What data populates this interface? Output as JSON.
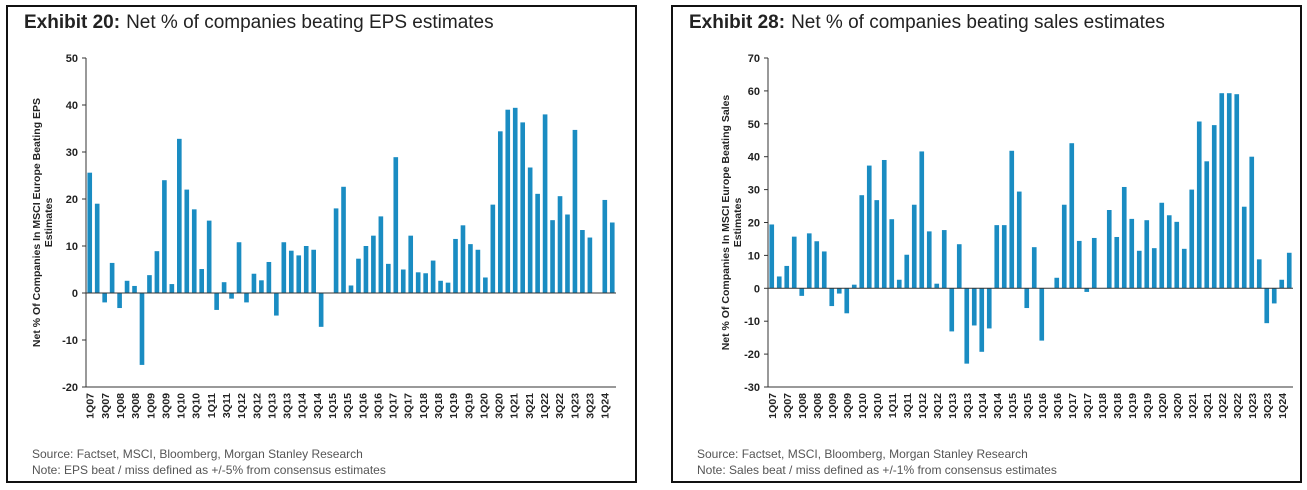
{
  "panels": [
    {
      "exhibit": "Exhibit 20:",
      "title": "Net % of companies beating EPS estimates",
      "source": "Source: Factset, MSCI, Bloomberg, Morgan Stanley Research",
      "note": "Note: EPS beat / miss defined as +/-5% from consensus estimates"
    },
    {
      "exhibit": "Exhibit 28:",
      "title": "Net % of companies beating sales estimates",
      "source": "Source: Factset, MSCI, Bloomberg, Morgan Stanley Research",
      "note": "Note: Sales beat / miss defined as +/-1% from consensus estimates"
    }
  ],
  "chart_data": [
    {
      "type": "bar",
      "title": "Net % of companies beating EPS estimates",
      "ylabel": "Net % Of Companies In MSCI Europe Beating EPS Estimates",
      "ylim": [
        -20,
        50
      ],
      "yticks": [
        -20,
        -10,
        0,
        10,
        20,
        30,
        40,
        50
      ],
      "bar_color": "#1a8cc2",
      "grid": false,
      "x_tick_labels": [
        "1Q07",
        "3Q07",
        "1Q08",
        "3Q08",
        "1Q09",
        "3Q09",
        "1Q10",
        "3Q10",
        "1Q11",
        "3Q11",
        "1Q12",
        "3Q12",
        "1Q13",
        "3Q13",
        "1Q14",
        "3Q14",
        "1Q15",
        "3Q15",
        "1Q16",
        "3Q16",
        "1Q17",
        "3Q17",
        "1Q18",
        "3Q18",
        "1Q19",
        "3Q19",
        "1Q20",
        "3Q20",
        "1Q21",
        "3Q21",
        "1Q22",
        "3Q22",
        "1Q23",
        "3Q23",
        "1Q24"
      ],
      "values": [
        25.6,
        19.0,
        -2.0,
        6.4,
        -3.2,
        2.6,
        1.5,
        -15.3,
        3.8,
        8.9,
        24.0,
        1.9,
        32.8,
        22.0,
        17.8,
        5.1,
        15.4,
        -3.6,
        2.3,
        -1.2,
        10.8,
        -2.0,
        4.1,
        2.7,
        6.6,
        -4.8,
        10.8,
        9.0,
        8.0,
        10.0,
        9.2,
        -7.2,
        0.0,
        18.0,
        22.6,
        1.6,
        7.3,
        10.0,
        12.2,
        16.3,
        6.2,
        28.9,
        5.0,
        12.2,
        4.4,
        4.2,
        6.9,
        2.6,
        2.2,
        11.5,
        14.4,
        10.4,
        9.2,
        3.3,
        18.8,
        34.4,
        39.0,
        39.4,
        36.3,
        26.7,
        21.1,
        38.0,
        15.5,
        20.6,
        16.7,
        34.7,
        13.4,
        11.8,
        0.0,
        19.8,
        15.0
      ]
    },
    {
      "type": "bar",
      "title": "Net % of companies beating sales estimates",
      "ylabel": "Net % Of Companies In MSCI Europe Beating Sales Estimates",
      "ylim": [
        -30,
        70
      ],
      "yticks": [
        -30,
        -20,
        -10,
        0,
        10,
        20,
        30,
        40,
        50,
        60,
        70
      ],
      "bar_color": "#1a8cc2",
      "grid": false,
      "x_tick_labels": [
        "1Q07",
        "3Q07",
        "1Q08",
        "3Q08",
        "1Q09",
        "3Q09",
        "1Q10",
        "3Q10",
        "1Q11",
        "3Q11",
        "1Q12",
        "3Q12",
        "1Q13",
        "3Q13",
        "1Q14",
        "3Q14",
        "1Q15",
        "3Q15",
        "1Q16",
        "3Q16",
        "1Q17",
        "3Q17",
        "1Q18",
        "3Q18",
        "1Q19",
        "3Q19",
        "1Q20",
        "3Q20",
        "1Q21",
        "3Q21",
        "1Q22",
        "3Q22",
        "1Q23",
        "3Q23",
        "1Q24"
      ],
      "values": [
        19.4,
        3.6,
        6.8,
        15.7,
        -2.3,
        16.7,
        14.3,
        11.2,
        -5.4,
        -1.6,
        -7.6,
        1.1,
        28.3,
        37.3,
        26.8,
        39.0,
        21.0,
        2.6,
        10.2,
        25.4,
        41.6,
        17.3,
        1.4,
        17.7,
        -13.1,
        13.4,
        -22.9,
        -11.3,
        -19.3,
        -12.2,
        19.2,
        19.2,
        41.8,
        29.4,
        -6.0,
        12.5,
        -15.9,
        0.0,
        3.2,
        25.4,
        44.1,
        14.4,
        -1.1,
        15.3,
        0.0,
        23.8,
        15.6,
        30.8,
        21.1,
        11.4,
        20.7,
        12.2,
        26.0,
        22.2,
        20.2,
        12.0,
        30.0,
        50.7,
        38.6,
        49.6,
        59.3,
        59.3,
        59.0,
        24.8,
        40.0,
        8.8,
        -10.6,
        -4.6,
        2.6,
        10.8
      ]
    }
  ]
}
